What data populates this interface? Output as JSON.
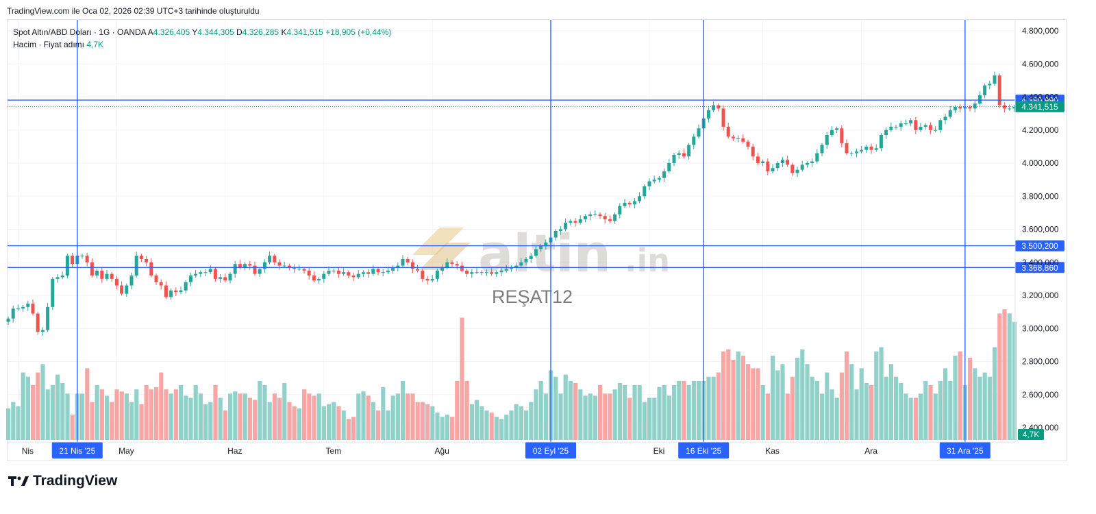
{
  "header": {
    "created_note": "TradingView.com ile Oca 02, 2026 02:39 UTC+3 tarihinde oluşturuldu"
  },
  "legend": {
    "symbol": "Spot Altın/ABD Doları · 1G · OANDA",
    "open_label": "A",
    "open_value": "4.326,405",
    "high_label": "Y",
    "high_value": "4.344,305",
    "low_label": "D",
    "low_value": "4.326,285",
    "close_label": "K",
    "close_value": "4.341,515",
    "change": "+18,905 (+0,44%)",
    "volume_label": "Hacim · Fiyat adımı",
    "volume_value": "4,7K"
  },
  "watermark": {
    "brand": "altin",
    "suffix": ".in",
    "user": "REŞAT12"
  },
  "footer": {
    "brand": "TradingView"
  },
  "colors": {
    "up": "#26a69a",
    "down": "#ef5350",
    "line": "#2962ff",
    "vol_up": "#92d1c9",
    "vol_down": "#f5a6a5",
    "badge_green": "#089981"
  },
  "chart_data": {
    "type": "candlestick",
    "y_axis": {
      "min": 2300,
      "max": 4900,
      "ticks": [
        4800,
        4600,
        4400,
        4200,
        4000,
        3800,
        3600,
        3400,
        3200,
        3000,
        2800,
        2600,
        2400
      ],
      "tick_labels": [
        "4.800,000",
        "4.600,000",
        "4.400,000",
        "4.200,000",
        "4.000,000",
        "3.800,000",
        "3.600,000",
        "3.400,000",
        "3.200,000",
        "3.000,000",
        "2.800,000",
        "2.600,000",
        "2.400,000"
      ]
    },
    "x_axis": {
      "labels": [
        {
          "text": "Nis",
          "bar": 2
        },
        {
          "text": "May",
          "bar": 22
        },
        {
          "text": "Haz",
          "bar": 44
        },
        {
          "text": "Tem",
          "bar": 64
        },
        {
          "text": "Ağu",
          "bar": 86
        },
        {
          "text": "Eki",
          "bar": 130
        },
        {
          "text": "Kas",
          "bar": 153
        },
        {
          "text": "Ara",
          "bar": 173
        }
      ]
    },
    "horizontal_lines": [
      {
        "price": 4380.99,
        "label": "4.380,990"
      },
      {
        "price": 3500.2,
        "label": "3.500,200"
      },
      {
        "price": 3368.86,
        "label": "3.368,860"
      }
    ],
    "current_price": {
      "price": 4341.515,
      "label": "4.341,515"
    },
    "vertical_lines": [
      {
        "bar": 14,
        "label": "21 Nis '25"
      },
      {
        "bar": 110,
        "label": "02 Eyl '25"
      },
      {
        "bar": 141,
        "label": "16 Eki '25"
      },
      {
        "bar": 194,
        "label": "31 Ara '25"
      }
    ],
    "volume_badge": "4,7K",
    "volume_scale": {
      "max": 3000
    },
    "closes": [
      3060,
      3120,
      3120,
      3130,
      3150,
      3090,
      2980,
      2990,
      3130,
      3300,
      3310,
      3320,
      3440,
      3390,
      3440,
      3440,
      3400,
      3320,
      3350,
      3300,
      3330,
      3300,
      3260,
      3210,
      3260,
      3320,
      3440,
      3420,
      3400,
      3320,
      3280,
      3260,
      3190,
      3230,
      3220,
      3230,
      3280,
      3320,
      3330,
      3340,
      3340,
      3360,
      3300,
      3310,
      3290,
      3330,
      3390,
      3370,
      3390,
      3380,
      3330,
      3360,
      3400,
      3440,
      3400,
      3380,
      3380,
      3370,
      3360,
      3360,
      3350,
      3320,
      3290,
      3300,
      3330,
      3350,
      3350,
      3330,
      3340,
      3320,
      3310,
      3330,
      3340,
      3330,
      3360,
      3340,
      3340,
      3350,
      3370,
      3380,
      3420,
      3400,
      3360,
      3350,
      3300,
      3290,
      3300,
      3350,
      3370,
      3400,
      3390,
      3380,
      3350,
      3330,
      3340,
      3340,
      3340,
      3340,
      3330,
      3340,
      3350,
      3360,
      3370,
      3380,
      3400,
      3420,
      3440,
      3480,
      3500,
      3520,
      3550,
      3590,
      3600,
      3640,
      3650,
      3640,
      3660,
      3680,
      3690,
      3690,
      3680,
      3660,
      3650,
      3690,
      3740,
      3760,
      3750,
      3770,
      3800,
      3860,
      3890,
      3900,
      3910,
      3950,
      4000,
      4050,
      4060,
      4040,
      4110,
      4160,
      4210,
      4270,
      4320,
      4350,
      4330,
      4220,
      4160,
      4150,
      4150,
      4130,
      4100,
      4040,
      4000,
      4010,
      3950,
      3970,
      4000,
      4020,
      3990,
      3940,
      3960,
      3990,
      4000,
      4010,
      4060,
      4110,
      4170,
      4200,
      4210,
      4120,
      4060,
      4060,
      4070,
      4080,
      4100,
      4080,
      4090,
      4170,
      4200,
      4220,
      4220,
      4240,
      4240,
      4260,
      4200,
      4220,
      4230,
      4200,
      4200,
      4260,
      4280,
      4320,
      4340,
      4330,
      4340,
      4330,
      4360,
      4410,
      4470,
      4480,
      4530,
      4350,
      4330,
      4330,
      4341
    ],
    "volumes": [
      2450,
      2480,
      2460,
      2620,
      2600,
      2560,
      2620,
      2660,
      2540,
      2560,
      2610,
      2570,
      2520,
      2420,
      2520,
      2520,
      2640,
      2480,
      2560,
      2540,
      2510,
      2480,
      2540,
      2530,
      2520,
      2480,
      2540,
      2470,
      2560,
      2540,
      2550,
      2620,
      2540,
      2520,
      2540,
      2560,
      2510,
      2500,
      2560,
      2520,
      2470,
      2480,
      2560,
      2500,
      2440,
      2520,
      2530,
      2520,
      2520,
      2500,
      2490,
      2580,
      2560,
      2480,
      2520,
      2500,
      2570,
      2480,
      2460,
      2450,
      2540,
      2520,
      2510,
      2520,
      2460,
      2470,
      2480,
      2460,
      2440,
      2400,
      2410,
      2520,
      2530,
      2510,
      2480,
      2440,
      2550,
      2440,
      2510,
      2520,
      2580,
      2520,
      2520,
      2480,
      2480,
      2470,
      2460,
      2430,
      2410,
      2420,
      2410,
      2580,
      2880,
      2580,
      2470,
      2490,
      2460,
      2440,
      2430,
      2410,
      2400,
      2420,
      2440,
      2470,
      2460,
      2440,
      2480,
      2540,
      2580,
      2520,
      2630,
      2600,
      2520,
      2610,
      2580,
      2570,
      2540,
      2510,
      2520,
      2510,
      2560,
      2520,
      2520,
      2540,
      2570,
      2560,
      2500,
      2560,
      2560,
      2480,
      2500,
      2500,
      2550,
      2560,
      2510,
      2560,
      2580,
      2580,
      2560,
      2580,
      2580,
      2580,
      2600,
      2600,
      2620,
      2720,
      2730,
      2680,
      2720,
      2700,
      2660,
      2640,
      2640,
      2560,
      2520,
      2700,
      2630,
      2660,
      2520,
      2600,
      2690,
      2730,
      2660,
      2600,
      2580,
      2520,
      2620,
      2540,
      2500,
      2620,
      2720,
      2660,
      2540,
      2640,
      2570,
      2560,
      2720,
      2740,
      2600,
      2660,
      2600,
      2570,
      2520,
      2500,
      2500,
      2520,
      2580,
      2560,
      2520,
      2580,
      2640,
      2580,
      2700,
      2720,
      2560,
      2690,
      2640,
      2600,
      2620,
      2600,
      2740,
      2900,
      2920,
      2900,
      2860,
      2400
    ]
  }
}
